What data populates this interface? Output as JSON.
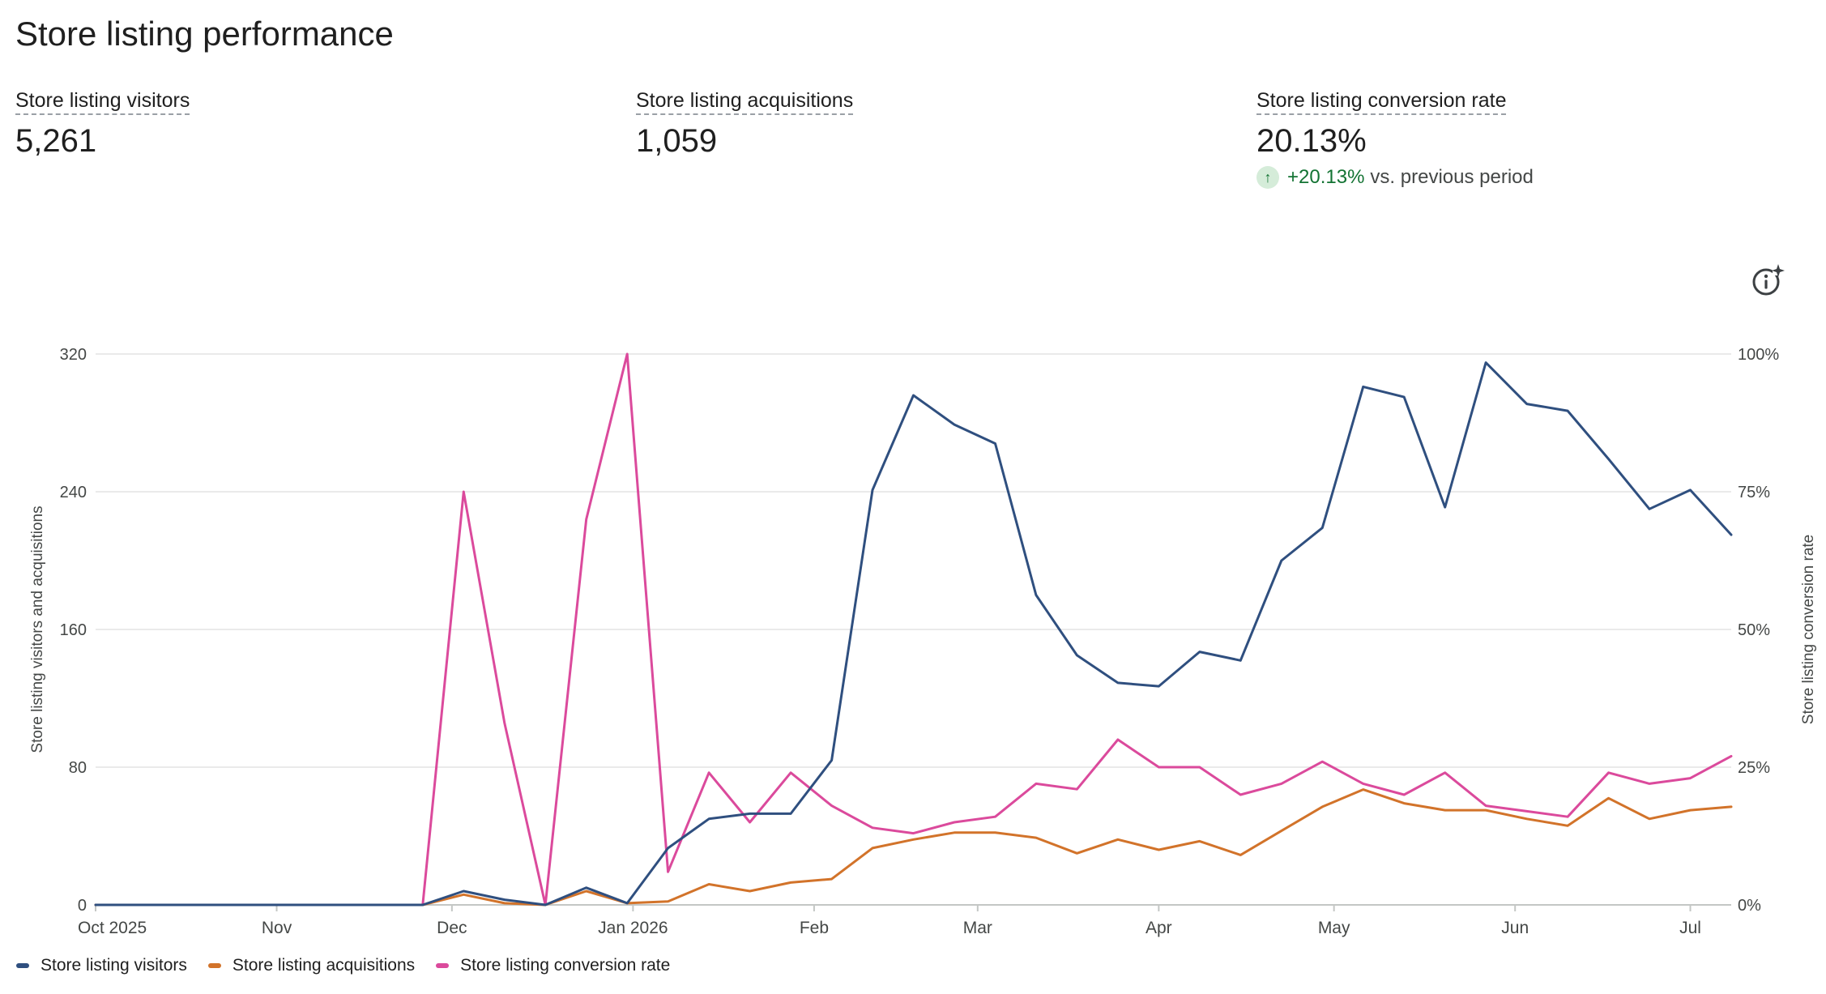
{
  "page": {
    "title": "Store listing performance"
  },
  "kpis": [
    {
      "label": "Store listing visitors",
      "value": "5,261"
    },
    {
      "label": "Store listing acquisitions",
      "value": "1,059"
    },
    {
      "label": "Store listing conversion rate",
      "value": "20.13%",
      "change": "+20.13%",
      "change_suffix": "vs. previous period"
    }
  ],
  "icons": {
    "change_arrow": "arrow-up-icon",
    "insights": "info-sparkle-icon"
  },
  "colors": {
    "visitors": "#2f4f7f",
    "acquisitions": "#d2732a",
    "conversion": "#db4a9c",
    "positive": "#137333"
  },
  "chart_data": {
    "type": "line",
    "x": [
      "2025-10-01",
      "2025-10-08",
      "2025-10-15",
      "2025-10-22",
      "2025-10-29",
      "2025-11-05",
      "2025-11-12",
      "2025-11-19",
      "2025-11-26",
      "2025-12-03",
      "2025-12-10",
      "2025-12-17",
      "2025-12-24",
      "2025-12-31",
      "2026-01-07",
      "2026-01-14",
      "2026-01-21",
      "2026-01-28",
      "2026-02-04",
      "2026-02-11",
      "2026-02-18",
      "2026-02-25",
      "2026-03-04",
      "2026-03-11",
      "2026-03-18",
      "2026-03-25",
      "2026-04-01",
      "2026-04-08",
      "2026-04-15",
      "2026-04-22",
      "2026-04-29",
      "2026-05-06",
      "2026-05-13",
      "2026-05-20",
      "2026-05-27",
      "2026-06-03",
      "2026-06-10",
      "2026-06-17",
      "2026-06-24",
      "2026-07-01",
      "2026-07-08"
    ],
    "x_tick_labels": [
      "Oct 2025",
      "Nov",
      "Dec",
      "Jan 2026",
      "Feb",
      "Mar",
      "Apr",
      "May",
      "Jun",
      "Jul"
    ],
    "x_tick_dates": [
      "2025-10-01",
      "2025-11-01",
      "2025-12-01",
      "2026-01-01",
      "2026-02-01",
      "2026-03-01",
      "2026-04-01",
      "2026-05-01",
      "2026-06-01",
      "2026-07-01"
    ],
    "y_left": {
      "label": "Store listing visitors and acquisitions",
      "ticks": [
        "0",
        "80",
        "160",
        "240",
        "320"
      ],
      "lim": [
        0,
        320
      ]
    },
    "y_right": {
      "label": "Store listing conversion rate",
      "ticks": [
        "0%",
        "25%",
        "50%",
        "75%",
        "100%"
      ],
      "lim": [
        0,
        100
      ]
    },
    "grid": true,
    "legend_position": "bottom-left",
    "series": [
      {
        "name": "Store listing visitors",
        "axis": "left",
        "values": [
          0,
          0,
          0,
          0,
          0,
          0,
          0,
          0,
          0,
          8,
          3,
          0,
          10,
          1,
          33,
          50,
          53,
          53,
          84,
          241,
          296,
          279,
          268,
          180,
          145,
          129,
          127,
          147,
          142,
          200,
          219,
          301,
          295,
          231,
          315,
          291,
          287,
          259,
          230,
          241,
          215
        ]
      },
      {
        "name": "Store listing acquisitions",
        "axis": "left",
        "values": [
          0,
          0,
          0,
          0,
          0,
          0,
          0,
          0,
          0,
          6,
          1,
          0,
          8,
          1,
          2,
          12,
          8,
          13,
          15,
          33,
          38,
          42,
          42,
          39,
          30,
          38,
          32,
          37,
          29,
          43,
          57,
          67,
          59,
          55,
          55,
          50,
          46,
          62,
          50,
          55,
          57
        ]
      },
      {
        "name": "Store listing conversion rate",
        "axis": "right",
        "values": [
          0,
          0,
          0,
          0,
          0,
          0,
          0,
          0,
          0,
          75,
          33,
          0,
          70,
          100,
          6,
          24,
          15,
          24,
          18,
          14,
          13,
          15,
          16,
          22,
          21,
          30,
          25,
          25,
          20,
          22,
          26,
          22,
          20,
          24,
          18,
          17,
          16,
          24,
          22,
          23,
          27
        ]
      }
    ]
  }
}
